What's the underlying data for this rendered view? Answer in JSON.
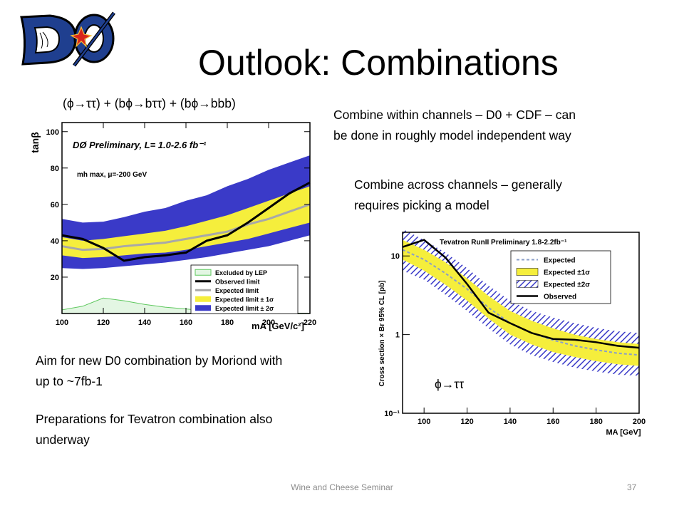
{
  "slide": {
    "title": "Outlook: Combinations",
    "left_caption": "(ϕ→ττ) + (bϕ→bττ) + (bϕ→bbb)",
    "right_caption": "ϕ→ττ",
    "bullet1_line1": "Combine within channels – D0 + CDF – can",
    "bullet1_line2": "be done in roughly model independent way",
    "bullet2_line1": "Combine across channels – generally",
    "bullet2_line2": "requires picking a model",
    "bullet3_line1": "Aim for new D0 combination by Moriond with",
    "bullet3_line2": "up to ~7fb-1",
    "bullet4_line1": "Preparations for Tevatron combination also",
    "bullet4_line2": "underway",
    "footer": "Wine and Cheese Seminar",
    "page_number": "37"
  },
  "logo": {
    "text": "DØ",
    "colors": {
      "letters": "#1f3f8f",
      "outline": "#000000",
      "star": "#d8261c"
    }
  },
  "chart_data": [
    {
      "type": "line",
      "title": "DØ Preliminary, L= 1.0-2.6 fb⁻¹",
      "subtitle": "mh max, μ=-200 GeV",
      "xlabel": "mA [GeV/c²]",
      "ylabel": "tanβ",
      "xlim": [
        100,
        220
      ],
      "ylim": [
        0,
        105
      ],
      "x_ticks": [
        "100",
        "120",
        "140",
        "160",
        "180",
        "200",
        "220"
      ],
      "y_ticks": [
        "20",
        "40",
        "60",
        "80",
        "100"
      ],
      "legend_position": "bottom-right",
      "colors": {
        "band2": "#3a3ac8",
        "band1": "#f5ee3c",
        "observed": "#000000",
        "expected": "#a8a8a8",
        "lep": "#5fc85f"
      },
      "x": [
        100,
        110,
        120,
        130,
        140,
        150,
        160,
        170,
        180,
        190,
        200,
        210,
        220
      ],
      "series": [
        {
          "name": "Observed limit",
          "values": [
            43,
            41,
            36,
            29,
            31,
            32,
            33.5,
            40,
            43,
            50,
            58,
            66,
            72
          ]
        },
        {
          "name": "Expected limit",
          "values": [
            37,
            35,
            35.5,
            37,
            38,
            39,
            41,
            43,
            45,
            49,
            52,
            56,
            60
          ]
        },
        {
          "name": "Expected limit ± 1σ",
          "low": [
            32,
            30.5,
            31,
            32,
            33,
            33.5,
            35,
            37,
            39,
            41,
            44,
            47,
            50
          ],
          "high": [
            42,
            40,
            41,
            42.5,
            44,
            45.5,
            48,
            51,
            54,
            58,
            62,
            66,
            70
          ]
        },
        {
          "name": "Expected limit ± 2σ",
          "low": [
            25,
            24.5,
            25,
            26,
            27,
            28,
            29.5,
            31,
            33,
            35,
            37,
            40,
            43
          ],
          "high": [
            52,
            50,
            50.5,
            53,
            56,
            58,
            62,
            65,
            70,
            74,
            79,
            83,
            87
          ]
        },
        {
          "name": "Excluded by LEP",
          "values": [
            2,
            4,
            8.5,
            7,
            5,
            3.5,
            2.5,
            1.5,
            1,
            0.5,
            0.3,
            0.2,
            0.1
          ]
        }
      ]
    },
    {
      "type": "line",
      "title": "Tevatron RunII Preliminary 1.8-2.2fb⁻¹",
      "xlabel": "MA [GeV]",
      "ylabel": "Cross section × Br 95% CL [pb]",
      "xlim": [
        90,
        200
      ],
      "ylim": [
        0.1,
        20
      ],
      "log_y": true,
      "x_ticks": [
        "100",
        "120",
        "140",
        "160",
        "180",
        "200"
      ],
      "y_ticks": [
        "10⁻¹",
        "1",
        "10"
      ],
      "legend_position": "top-right",
      "colors": {
        "band2": "#3a3ac8",
        "band1": "#f5ee3c",
        "observed": "#000000",
        "expected": "#8a9ec8"
      },
      "x": [
        90,
        100,
        110,
        120,
        130,
        140,
        150,
        160,
        170,
        180,
        190,
        200
      ],
      "series": [
        {
          "name": "Expected",
          "values": [
            12,
            9,
            6,
            3.8,
            2.2,
            1.4,
            1.05,
            0.85,
            0.72,
            0.64,
            0.58,
            0.55
          ]
        },
        {
          "name": "Expected ±1σ",
          "low": [
            9,
            6.5,
            4.3,
            2.7,
            1.6,
            1.0,
            0.75,
            0.6,
            0.52,
            0.46,
            0.42,
            0.4
          ],
          "high": [
            16,
            12,
            8.3,
            5.2,
            3.1,
            2.0,
            1.5,
            1.2,
            1.0,
            0.88,
            0.8,
            0.76
          ]
        },
        {
          "name": "Expected ±2σ",
          "low": [
            6.5,
            5,
            3.2,
            2.0,
            1.2,
            0.75,
            0.55,
            0.45,
            0.38,
            0.34,
            0.31,
            0.3
          ],
          "high": [
            22,
            16,
            11,
            7,
            4.2,
            2.7,
            2.0,
            1.65,
            1.4,
            1.22,
            1.1,
            1.05
          ]
        },
        {
          "name": "Observed",
          "values": [
            13,
            16,
            9.5,
            4.4,
            1.9,
            1.4,
            1.05,
            0.88,
            0.86,
            0.8,
            0.72,
            0.68
          ]
        }
      ]
    }
  ]
}
